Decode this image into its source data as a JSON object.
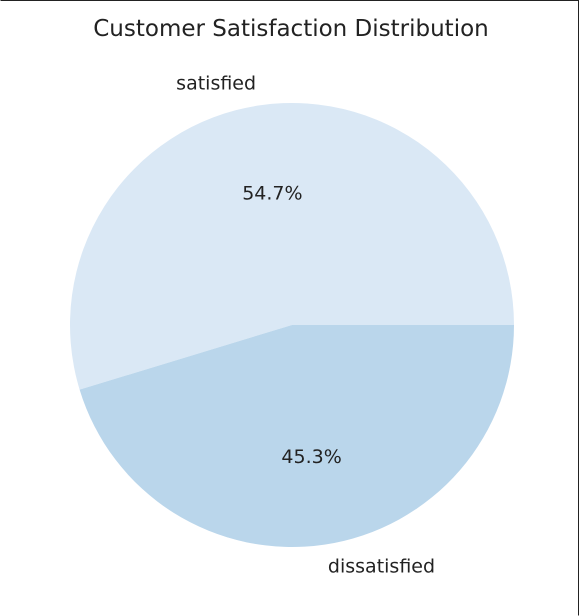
{
  "chart_data": {
    "type": "pie",
    "title": "Customer Satisfaction Distribution",
    "categories": [
      "satisfied",
      "dissatisfied"
    ],
    "values": [
      54.7,
      45.3
    ],
    "percent_labels": [
      "54.7%",
      "45.3%"
    ],
    "colors": [
      "#dae8f5",
      "#bad6eb"
    ],
    "start_angle": 0,
    "direction": "counterclockwise",
    "legend": "none"
  }
}
